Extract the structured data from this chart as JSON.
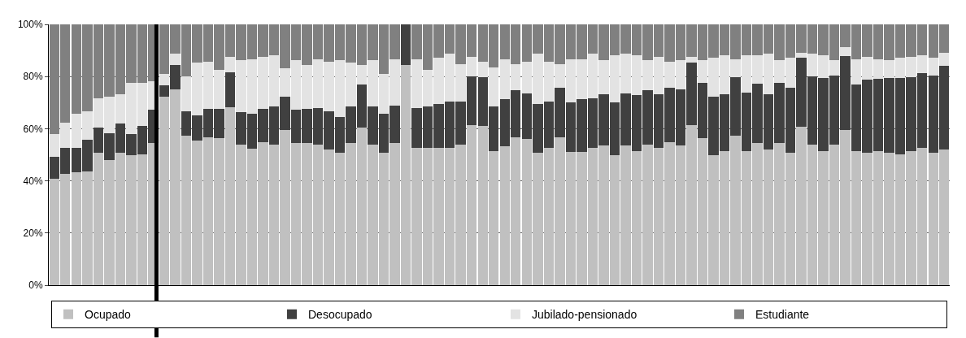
{
  "chart_data": {
    "type": "bar",
    "stacked": true,
    "categories": [
      null,
      null,
      null,
      null,
      null,
      null,
      null,
      null,
      null,
      null,
      null,
      null,
      null,
      null,
      null,
      null,
      null,
      null,
      null,
      null,
      null,
      null,
      null,
      null,
      null,
      null,
      null,
      null,
      null,
      null,
      null,
      null,
      null,
      null,
      null,
      null,
      null,
      null,
      null,
      null,
      null,
      null,
      null,
      null,
      null,
      null,
      null,
      null,
      null,
      null,
      null,
      null,
      null,
      null,
      null,
      null,
      null,
      null,
      null,
      null,
      null,
      null,
      null,
      null,
      null,
      null,
      null,
      null,
      null,
      null,
      null,
      null,
      null,
      null,
      null,
      null,
      null,
      null,
      null,
      null,
      null,
      null
    ],
    "series": [
      {
        "name": "Ocupado",
        "color": "#c0c0c0",
        "values": [
          40.7,
          42.7,
          43.3,
          43.7,
          50.9,
          47.9,
          50.9,
          49.9,
          50.2,
          54.5,
          72.2,
          75.1,
          57.4,
          55.5,
          56.8,
          56.4,
          68.2,
          53.8,
          52.2,
          54.8,
          53.8,
          59.4,
          54.5,
          54.5,
          53.8,
          51.9,
          50.9,
          54.5,
          60.4,
          53.8,
          50.9,
          54.5,
          84.3,
          52.5,
          52.5,
          52.8,
          52.8,
          53.8,
          61.4,
          61.0,
          51.5,
          53.2,
          56.8,
          56.1,
          50.9,
          52.5,
          56.8,
          51.2,
          51.2,
          52.5,
          53.5,
          49.9,
          53.5,
          51.5,
          53.8,
          52.5,
          54.8,
          53.5,
          61.4,
          56.4,
          49.9,
          51.5,
          57.4,
          51.5,
          54.5,
          51.9,
          54.5,
          50.9,
          60.7,
          53.8,
          51.5,
          53.8,
          59.4,
          51.5,
          50.9,
          51.5,
          50.9,
          50.2,
          51.5,
          52.8,
          50.9,
          51.9
        ]
      },
      {
        "name": "Desocupado",
        "color": "#404040",
        "values": [
          8.5,
          9.8,
          9.5,
          12.1,
          9.5,
          10.5,
          11.1,
          7.9,
          10.8,
          12.7,
          4.5,
          9.2,
          9.2,
          9.5,
          10.8,
          11.2,
          13.5,
          12.5,
          13.4,
          12.8,
          14.8,
          12.8,
          12.7,
          13.1,
          14.1,
          14.7,
          13.7,
          14.1,
          16.7,
          14.8,
          14.7,
          14.4,
          15.7,
          15.4,
          16.1,
          16.7,
          17.7,
          16.7,
          18.6,
          18.7,
          17.1,
          18.0,
          18.0,
          17.4,
          18.6,
          18.0,
          19.0,
          19.0,
          20.0,
          19.0,
          19.6,
          20.3,
          20.0,
          21.3,
          21.0,
          20.6,
          21.0,
          21.6,
          23.9,
          21.3,
          22.3,
          21.6,
          22.3,
          22.3,
          22.9,
          21.2,
          23.2,
          24.9,
          26.5,
          26.2,
          27.9,
          26.5,
          28.5,
          25.6,
          27.8,
          27.5,
          28.5,
          29.2,
          28.2,
          28.5,
          29.4,
          32.1
        ]
      },
      {
        "name": "Jubilado-pensionado",
        "color": "#e3e3e3",
        "values": [
          8.7,
          9.8,
          12.8,
          10.8,
          11.1,
          13.8,
          11.1,
          19.9,
          16.7,
          10.9,
          4.3,
          4.6,
          13.4,
          20.3,
          18.0,
          15.0,
          5.9,
          19.9,
          21.0,
          20.0,
          19.6,
          11.1,
          19.0,
          16.7,
          18.7,
          19.0,
          21.6,
          16.7,
          7.2,
          17.6,
          15.4,
          17.7,
          0,
          18.7,
          14.0,
          17.7,
          18.4,
          14.1,
          7.6,
          5.9,
          15.0,
          15.4,
          9.8,
          12.1,
          19.4,
          15.1,
          8.8,
          16.4,
          15.4,
          17.4,
          13.1,
          18.0,
          15.4,
          15.4,
          11.4,
          14.5,
          9.8,
          11.1,
          2.3,
          8.5,
          15.0,
          15.1,
          6.9,
          14.4,
          10.8,
          15.8,
          8.5,
          11.4,
          2.0,
          8.9,
          8.8,
          5.9,
          3.3,
          9.5,
          8.9,
          7.6,
          6.8,
          7.8,
          7.9,
          6.9,
          6.9,
          5.2
        ]
      },
      {
        "name": "Estudiante",
        "color": "#808080",
        "values": [
          42.1,
          37.7,
          34.4,
          33.4,
          28.5,
          27.8,
          26.9,
          22.3,
          22.3,
          21.9,
          19.0,
          11.1,
          20.0,
          14.7,
          14.4,
          17.4,
          12.4,
          13.8,
          13.4,
          12.4,
          11.8,
          16.7,
          13.8,
          15.7,
          13.4,
          14.4,
          13.8,
          14.7,
          15.7,
          13.8,
          19.0,
          13.4,
          0,
          13.4,
          17.4,
          12.8,
          11.1,
          15.4,
          12.4,
          14.4,
          16.4,
          13.4,
          15.4,
          14.4,
          11.1,
          14.4,
          15.4,
          13.4,
          13.4,
          11.1,
          13.8,
          11.8,
          11.1,
          11.8,
          13.8,
          12.4,
          14.4,
          13.8,
          12.4,
          13.8,
          12.8,
          11.8,
          13.4,
          11.8,
          11.8,
          11.1,
          13.8,
          12.8,
          10.8,
          11.1,
          11.8,
          13.8,
          8.8,
          13.4,
          12.4,
          13.4,
          13.8,
          12.8,
          12.4,
          11.8,
          12.8,
          10.8
        ]
      }
    ],
    "ylim": [
      0,
      100
    ],
    "yticks": [
      {
        "value": 0,
        "label": "0%"
      },
      {
        "value": 20,
        "label": "20%"
      },
      {
        "value": 40,
        "label": "40%"
      },
      {
        "value": 60,
        "label": "60%"
      },
      {
        "value": 80,
        "label": "80%"
      },
      {
        "value": 100,
        "label": "100%"
      }
    ],
    "grid": "y",
    "legend": "bottom"
  }
}
